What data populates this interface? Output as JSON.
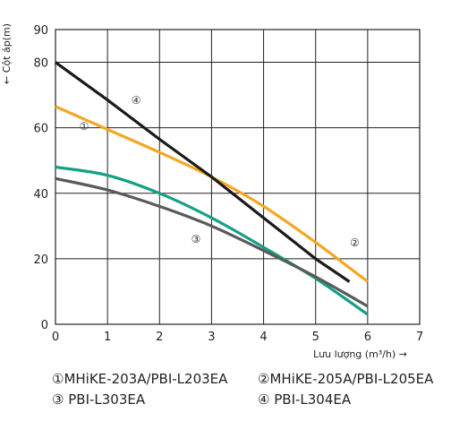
{
  "chart_data": {
    "type": "line",
    "xlabel": "Lưu lượng  (m³/h)  →",
    "ylabel": "← Cột áp(m)",
    "xlim": [
      0,
      7
    ],
    "ylim": [
      0,
      90
    ],
    "xticks": [
      0,
      1,
      2,
      3,
      4,
      5,
      6,
      7
    ],
    "yticks": [
      0,
      20,
      40,
      60,
      80,
      90
    ],
    "grid": true,
    "series": [
      {
        "name": "MHiKE-203A/PBI-L203EA",
        "marker": "①",
        "color": "#14a085",
        "x": [
          0,
          1,
          2,
          3,
          4,
          5,
          6
        ],
        "y": [
          48,
          45.5,
          40,
          32.5,
          23.5,
          14,
          3
        ]
      },
      {
        "name": "MHiKE-205A/PBI-L205EA",
        "marker": "②",
        "color": "#f5a623",
        "x": [
          0,
          1,
          2,
          3,
          4,
          5,
          6
        ],
        "y": [
          66.5,
          59.5,
          52.5,
          45,
          36,
          25,
          13
        ]
      },
      {
        "name": "PBI-L303EA",
        "marker": "③",
        "color": "#5a5a5a",
        "x": [
          0,
          1,
          2,
          3,
          4,
          5,
          6
        ],
        "y": [
          44.5,
          41,
          36,
          30,
          22.5,
          14.5,
          5.5
        ]
      },
      {
        "name": "PBI-L304EA",
        "marker": "④",
        "color": "#1a1a1a",
        "x": [
          0,
          1,
          2,
          3,
          4,
          5,
          5.65
        ],
        "y": [
          80,
          68.5,
          56.5,
          45,
          32.5,
          20,
          13
        ]
      }
    ],
    "legend": [
      {
        "marker": "①",
        "name": "MHiKE-203A/PBI-L203EA"
      },
      {
        "marker": "②",
        "name": "MHiKE-205A/PBI-L205EA"
      },
      {
        "marker": "③",
        "name": "PBI-L303EA"
      },
      {
        "marker": "④",
        "name": "PBI-L304EA"
      }
    ]
  }
}
